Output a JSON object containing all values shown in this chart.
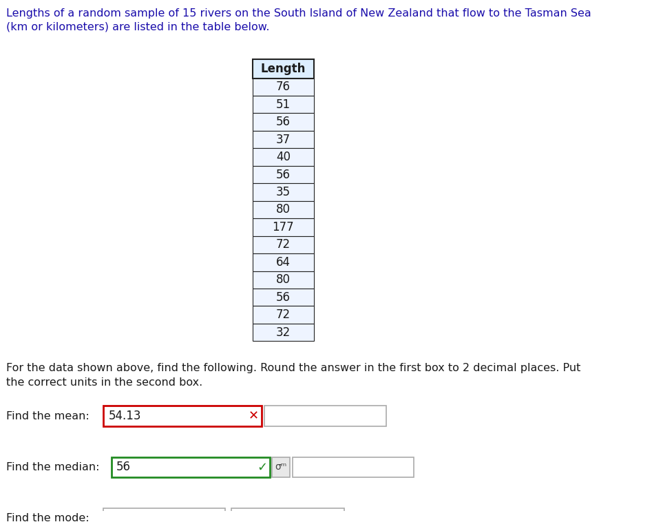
{
  "title_line1": "Lengths of a random sample of 15 rivers on the South Island of New Zealand that flow to the Tasman Sea",
  "title_line2": "(km or kilometers) are listed in the table below.",
  "table_header": "Length",
  "table_values": [
    76,
    51,
    56,
    37,
    40,
    56,
    35,
    80,
    177,
    72,
    64,
    80,
    56,
    72,
    32
  ],
  "instruction_line1": "For the data shown above, find the following. Round the answer in the first box to 2 decimal places. Put",
  "instruction_line2": "the correct units in the second box.",
  "mean_label": "Find the mean:",
  "mean_value": "54.13",
  "mean_box_border_color": "#cc0000",
  "median_label": "Find the median:",
  "median_value": "56",
  "median_box_border_color": "#228B22",
  "mode_label": "Find the mode:",
  "background_color": "#ffffff",
  "text_color": "#1a1a1a",
  "title_color": "#1a0dab",
  "table_header_bg": "#ddeeff",
  "table_data_bg": "#eef4ff",
  "table_border_color": "#222222",
  "check_color": "#228B22",
  "cross_color": "#cc0000",
  "sigma_box_bg": "#e8e8e8",
  "input_border_color": "#aaaaaa",
  "fontsize_title": 11.5,
  "fontsize_table": 12,
  "fontsize_body": 11.5,
  "fontsize_input": 12
}
